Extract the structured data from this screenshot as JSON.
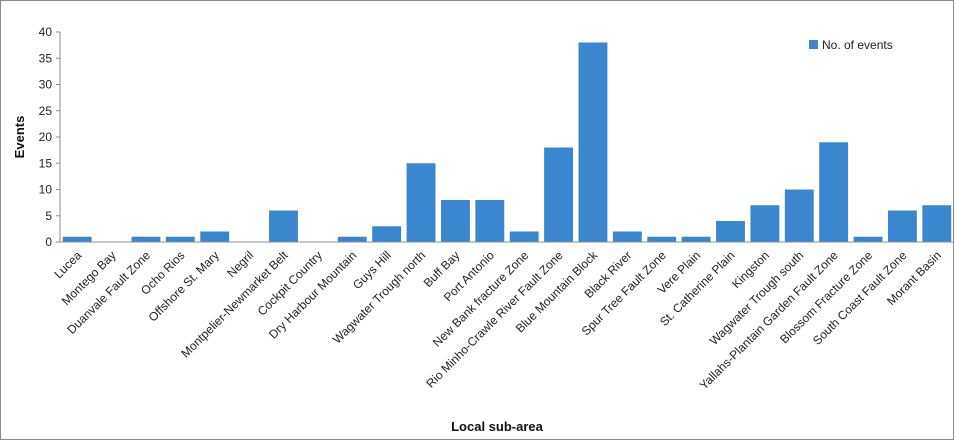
{
  "chart_data": {
    "type": "bar",
    "xlabel": "Local sub-area",
    "ylabel": "Events",
    "ylim": [
      0,
      40
    ],
    "yticks": [
      0,
      5,
      10,
      15,
      20,
      25,
      30,
      35,
      40
    ],
    "grid": false,
    "legend_position": "top-right",
    "bar_color": "#3a87d0",
    "series": [
      {
        "name": "No. of events",
        "values": [
          1,
          0,
          1,
          1,
          2,
          0,
          6,
          0,
          1,
          3,
          15,
          8,
          8,
          2,
          18,
          38,
          2,
          1,
          1,
          4,
          7,
          10,
          19,
          1,
          6,
          7
        ]
      }
    ],
    "categories": [
      "Lucea",
      "Montego Bay",
      "Duanvale Fault Zone",
      "Ocho Rios",
      "Offshore St. Mary",
      "Negril",
      "Montpelier-Newmarket Belt",
      "Cockpit Country",
      "Dry Harbour Mountain",
      "Guys Hill",
      "Wagwater Trough north",
      "Buff Bay",
      "Port Antonio",
      "New Bank fracture Zone",
      "Rio Minho-Crawle River Fault Zone",
      "Blue Mountain Block",
      "Black River",
      "Spur Tree Fault Zone",
      "Vere Plain",
      "St. Catherine Plain",
      "Kingston",
      "Wagwater Trough south",
      "Yallahs-Plantain Garden Fault Zone",
      "Blossom Fracture Zone",
      "South Coast Fault Zone",
      "Morant Basin"
    ]
  }
}
